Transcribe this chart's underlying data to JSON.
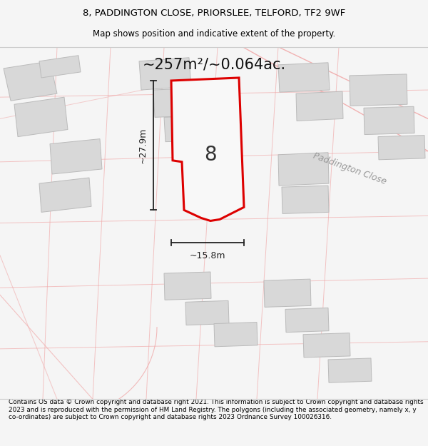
{
  "title_line1": "8, PADDINGTON CLOSE, PRIORSLEE, TELFORD, TF2 9WF",
  "title_line2": "Map shows position and indicative extent of the property.",
  "area_label": "~257m²/~0.064ac.",
  "plot_number": "8",
  "dim_vertical": "~27.9m",
  "dim_horizontal": "~15.8m",
  "road_label": "Paddington Close",
  "footer_text": "Contains OS data © Crown copyright and database right 2021. This information is subject to Crown copyright and database rights 2023 and is reproduced with the permission of HM Land Registry. The polygons (including the associated geometry, namely x, y co-ordinates) are subject to Crown copyright and database rights 2023 Ordnance Survey 100026316.",
  "bg_color": "#f5f5f5",
  "map_bg": "#ffffff",
  "plot_fill": "#f8f8f8",
  "plot_edge": "#dd0000",
  "building_fill": "#d8d8d8",
  "building_edge": "#bbbbbb",
  "road_line": "#f0a0a0",
  "dim_color": "#222222"
}
